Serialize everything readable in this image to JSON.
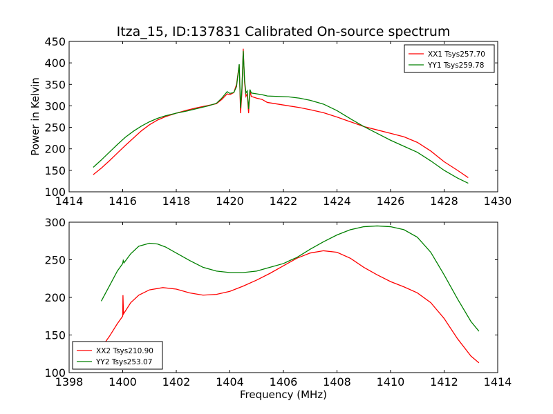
{
  "figure": {
    "title": "Itza_15, ID:137831 Calibrated On-source spectrum"
  },
  "chart_data": [
    {
      "type": "line",
      "title": "Itza_15, ID:137831 Calibrated On-source spectrum",
      "xlabel": "",
      "ylabel": "Power in Kelvin",
      "xlim": [
        1414,
        1430
      ],
      "ylim": [
        100,
        450
      ],
      "xticks": [
        "1414",
        "1416",
        "1418",
        "1420",
        "1422",
        "1424",
        "1426",
        "1428",
        "1430"
      ],
      "yticks": [
        "100",
        "150",
        "200",
        "250",
        "300",
        "350",
        "400",
        "450"
      ],
      "grid": false,
      "legend_position": "top-right",
      "series": [
        {
          "name": "XX1 Tsys257.70",
          "color": "#ff0000",
          "points": [
            [
              1414.9,
              140
            ],
            [
              1415.2,
              155
            ],
            [
              1415.5,
              172
            ],
            [
              1415.8,
              190
            ],
            [
              1416.1,
              208
            ],
            [
              1416.4,
              225
            ],
            [
              1416.7,
              242
            ],
            [
              1417.0,
              256
            ],
            [
              1417.3,
              267
            ],
            [
              1417.6,
              275
            ],
            [
              1418.0,
              283
            ],
            [
              1418.4,
              290
            ],
            [
              1418.8,
              296
            ],
            [
              1419.2,
              301
            ],
            [
              1419.5,
              305
            ],
            [
              1419.7,
              315
            ],
            [
              1419.9,
              328
            ],
            [
              1420.0,
              326
            ],
            [
              1420.15,
              331
            ],
            [
              1420.25,
              350
            ],
            [
              1420.35,
              395
            ],
            [
              1420.4,
              283
            ],
            [
              1420.45,
              330
            ],
            [
              1420.5,
              433
            ],
            [
              1420.55,
              355
            ],
            [
              1420.6,
              322
            ],
            [
              1420.65,
              328
            ],
            [
              1420.7,
              283
            ],
            [
              1420.75,
              335
            ],
            [
              1420.8,
              322
            ],
            [
              1421.0,
              318
            ],
            [
              1421.2,
              315
            ],
            [
              1421.4,
              308
            ],
            [
              1421.8,
              304
            ],
            [
              1422.2,
              300
            ],
            [
              1422.6,
              296
            ],
            [
              1423.0,
              291
            ],
            [
              1423.5,
              284
            ],
            [
              1424.0,
              274
            ],
            [
              1424.5,
              263
            ],
            [
              1425.0,
              252
            ],
            [
              1425.5,
              244
            ],
            [
              1426.0,
              236
            ],
            [
              1426.5,
              228
            ],
            [
              1427.0,
              215
            ],
            [
              1427.5,
              195
            ],
            [
              1428.0,
              170
            ],
            [
              1428.5,
              150
            ],
            [
              1428.9,
              133
            ]
          ]
        },
        {
          "name": "YY1 Tsys259.78",
          "color": "#008000",
          "points": [
            [
              1414.9,
              157
            ],
            [
              1415.2,
              174
            ],
            [
              1415.5,
              192
            ],
            [
              1415.8,
              210
            ],
            [
              1416.1,
              227
            ],
            [
              1416.4,
              241
            ],
            [
              1416.7,
              253
            ],
            [
              1417.0,
              263
            ],
            [
              1417.3,
              271
            ],
            [
              1417.6,
              277
            ],
            [
              1418.0,
              283
            ],
            [
              1418.4,
              288
            ],
            [
              1418.8,
              294
            ],
            [
              1419.2,
              300
            ],
            [
              1419.5,
              306
            ],
            [
              1419.7,
              318
            ],
            [
              1419.9,
              333
            ],
            [
              1420.0,
              329
            ],
            [
              1420.15,
              331
            ],
            [
              1420.25,
              345
            ],
            [
              1420.35,
              397
            ],
            [
              1420.4,
              295
            ],
            [
              1420.45,
              340
            ],
            [
              1420.5,
              428
            ],
            [
              1420.55,
              360
            ],
            [
              1420.6,
              330
            ],
            [
              1420.65,
              335
            ],
            [
              1420.7,
              293
            ],
            [
              1420.75,
              338
            ],
            [
              1420.8,
              330
            ],
            [
              1421.0,
              328
            ],
            [
              1421.2,
              326
            ],
            [
              1421.4,
              323
            ],
            [
              1421.8,
              322
            ],
            [
              1422.2,
              321
            ],
            [
              1422.6,
              318
            ],
            [
              1423.0,
              313
            ],
            [
              1423.5,
              304
            ],
            [
              1424.0,
              289
            ],
            [
              1424.5,
              270
            ],
            [
              1425.0,
              252
            ],
            [
              1425.5,
              236
            ],
            [
              1426.0,
              220
            ],
            [
              1426.5,
              206
            ],
            [
              1427.0,
              192
            ],
            [
              1427.5,
              172
            ],
            [
              1428.0,
              150
            ],
            [
              1428.5,
              132
            ],
            [
              1428.9,
              120
            ]
          ]
        }
      ]
    },
    {
      "type": "line",
      "title": "",
      "xlabel": "Frequency (MHz)",
      "ylabel": "",
      "xlim": [
        1398,
        1414
      ],
      "ylim": [
        100,
        300
      ],
      "xticks": [
        "1398",
        "1400",
        "1402",
        "1404",
        "1406",
        "1408",
        "1410",
        "1412",
        "1414"
      ],
      "yticks": [
        "100",
        "150",
        "200",
        "250",
        "300"
      ],
      "grid": false,
      "legend_position": "bottom-left",
      "series": [
        {
          "name": "XX2 Tsys210.90",
          "color": "#ff0000",
          "points": [
            [
              1399.2,
              133
            ],
            [
              1399.5,
              148
            ],
            [
              1399.8,
              165
            ],
            [
              1400.0,
              175
            ],
            [
              1400.01,
              203
            ],
            [
              1400.03,
              178
            ],
            [
              1400.3,
              193
            ],
            [
              1400.6,
              203
            ],
            [
              1401.0,
              210
            ],
            [
              1401.5,
              213
            ],
            [
              1402.0,
              211
            ],
            [
              1402.5,
              206
            ],
            [
              1403.0,
              203
            ],
            [
              1403.5,
              204
            ],
            [
              1404.0,
              208
            ],
            [
              1404.5,
              215
            ],
            [
              1405.0,
              223
            ],
            [
              1405.5,
              232
            ],
            [
              1406.0,
              242
            ],
            [
              1406.5,
              252
            ],
            [
              1407.0,
              259
            ],
            [
              1407.5,
              262
            ],
            [
              1408.0,
              260
            ],
            [
              1408.5,
              252
            ],
            [
              1409.0,
              240
            ],
            [
              1409.5,
              230
            ],
            [
              1410.0,
              221
            ],
            [
              1410.5,
              214
            ],
            [
              1411.0,
              206
            ],
            [
              1411.5,
              193
            ],
            [
              1412.0,
              172
            ],
            [
              1412.5,
              145
            ],
            [
              1413.0,
              122
            ],
            [
              1413.3,
              113
            ]
          ]
        },
        {
          "name": "YY2 Tsys253.07",
          "color": "#008000",
          "points": [
            [
              1399.2,
              195
            ],
            [
              1399.5,
              215
            ],
            [
              1399.8,
              235
            ],
            [
              1400.0,
              245
            ],
            [
              1400.02,
              249
            ],
            [
              1400.05,
              246
            ],
            [
              1400.3,
              258
            ],
            [
              1400.6,
              268
            ],
            [
              1401.0,
              272
            ],
            [
              1401.3,
              271
            ],
            [
              1401.6,
              267
            ],
            [
              1402.0,
              259
            ],
            [
              1402.5,
              249
            ],
            [
              1403.0,
              240
            ],
            [
              1403.5,
              235
            ],
            [
              1404.0,
              233
            ],
            [
              1404.5,
              233
            ],
            [
              1405.0,
              235
            ],
            [
              1405.5,
              240
            ],
            [
              1406.0,
              245
            ],
            [
              1406.3,
              250
            ],
            [
              1406.5,
              253
            ],
            [
              1407.0,
              264
            ],
            [
              1407.5,
              274
            ],
            [
              1408.0,
              283
            ],
            [
              1408.5,
              290
            ],
            [
              1409.0,
              294
            ],
            [
              1409.5,
              295
            ],
            [
              1410.0,
              294
            ],
            [
              1410.5,
              290
            ],
            [
              1411.0,
              280
            ],
            [
              1411.5,
              260
            ],
            [
              1412.0,
              230
            ],
            [
              1412.5,
              198
            ],
            [
              1413.0,
              168
            ],
            [
              1413.3,
              155
            ]
          ]
        }
      ]
    }
  ]
}
